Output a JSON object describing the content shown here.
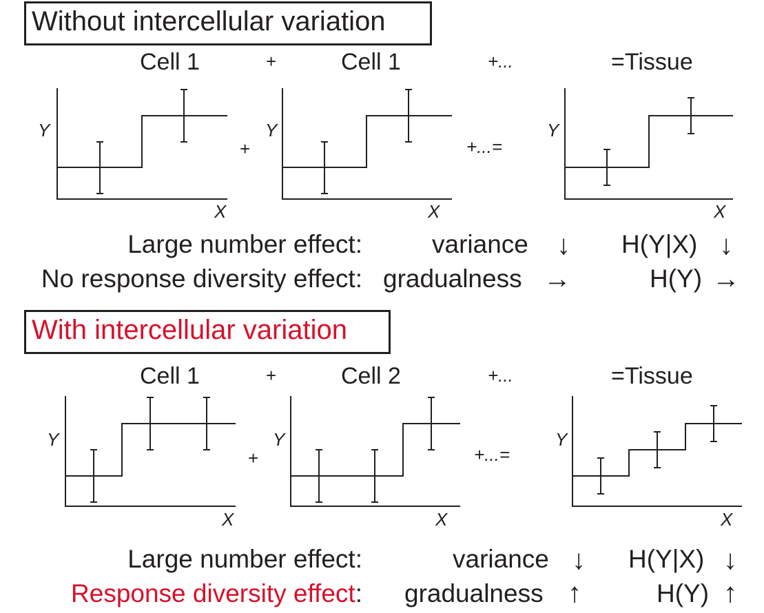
{
  "sections": [
    {
      "title": "Without intercellular variation",
      "title_color": "#231f20",
      "header_labels": [
        "Cell 1",
        "+",
        "Cell 1",
        "+...",
        "=Tissue"
      ],
      "between_ops": [
        "+",
        "+...="
      ],
      "axis_x": "X",
      "axis_y": "Y",
      "effects": [
        {
          "label": "Large number effect:",
          "label_color": "#231f20",
          "metric": "variance",
          "metric_arrow": "↓",
          "entropy": "H(Y|X)",
          "entropy_arrow": "↓"
        },
        {
          "label": "No response diversity effect:",
          "label_color": "#231f20",
          "metric": "gradualness",
          "metric_arrow": "→",
          "entropy": "H(Y)",
          "entropy_arrow": "→"
        }
      ]
    },
    {
      "title": "With intercellular variation",
      "title_color": "#d7112b",
      "header_labels": [
        "Cell 1",
        "+",
        "Cell 2",
        "+...",
        "=Tissue"
      ],
      "between_ops": [
        "+",
        "+...="
      ],
      "axis_x": "X",
      "axis_y": "Y",
      "effects": [
        {
          "label": "Large number effect:",
          "label_color": "#231f20",
          "metric": "variance",
          "metric_arrow": "↓",
          "entropy": "H(Y|X)",
          "entropy_arrow": "↓"
        },
        {
          "label": "Response diversity effect",
          "label_color": "#d7112b",
          "label_suffix": ":",
          "metric": "gradualness",
          "metric_arrow": "↑",
          "entropy": "H(Y)",
          "entropy_arrow": "↑"
        }
      ]
    }
  ],
  "colors": {
    "ink": "#231f20",
    "accent": "#d7112b"
  }
}
